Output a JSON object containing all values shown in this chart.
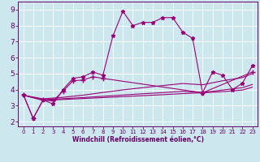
{
  "bg_color": "#cce8ee",
  "line_color": "#990077",
  "grid_color": "#aadddd",
  "xlim": [
    -0.5,
    23.5
  ],
  "ylim": [
    1.7,
    9.5
  ],
  "xticks": [
    0,
    1,
    2,
    3,
    4,
    5,
    6,
    7,
    8,
    9,
    10,
    11,
    12,
    13,
    14,
    15,
    16,
    17,
    18,
    19,
    20,
    21,
    22,
    23
  ],
  "yticks": [
    2,
    3,
    4,
    5,
    6,
    7,
    8,
    9
  ],
  "xlabel": "Windchill (Refroidissement éolien,°C)",
  "line0_x": [
    0,
    1,
    2,
    3,
    4,
    5,
    6,
    7,
    8,
    9,
    10,
    11,
    12,
    13,
    14,
    15,
    16,
    17,
    18,
    19,
    20,
    21,
    22,
    23
  ],
  "line0_y": [
    3.7,
    2.2,
    3.35,
    3.1,
    4.0,
    4.7,
    4.8,
    5.1,
    4.9,
    7.35,
    8.9,
    8.0,
    8.2,
    8.2,
    8.5,
    8.5,
    7.6,
    7.2,
    3.8,
    5.1,
    4.9,
    4.0,
    4.4,
    5.5
  ],
  "line1_x": [
    0,
    1,
    2,
    3,
    4,
    5,
    6,
    7,
    8,
    18,
    23
  ],
  "line1_y": [
    3.7,
    2.2,
    3.35,
    3.3,
    3.9,
    4.55,
    4.6,
    4.8,
    4.7,
    3.8,
    5.1
  ],
  "line2_x": [
    0,
    2,
    4,
    6,
    8,
    10,
    12,
    14,
    16,
    18,
    20,
    22,
    23
  ],
  "line2_y": [
    3.65,
    3.42,
    3.52,
    3.65,
    3.82,
    3.98,
    4.12,
    4.25,
    4.38,
    4.3,
    4.55,
    4.75,
    5.0
  ],
  "line3_x": [
    0,
    2,
    4,
    6,
    8,
    10,
    12,
    14,
    16,
    18,
    20,
    22,
    23
  ],
  "line3_y": [
    3.65,
    3.37,
    3.43,
    3.5,
    3.58,
    3.66,
    3.74,
    3.81,
    3.89,
    3.82,
    3.97,
    4.12,
    4.32
  ],
  "line4_x": [
    0,
    2,
    4,
    6,
    8,
    10,
    12,
    14,
    16,
    18,
    20,
    22,
    23
  ],
  "line4_y": [
    3.65,
    3.32,
    3.38,
    3.44,
    3.5,
    3.56,
    3.62,
    3.68,
    3.75,
    3.8,
    3.87,
    3.97,
    4.15
  ]
}
